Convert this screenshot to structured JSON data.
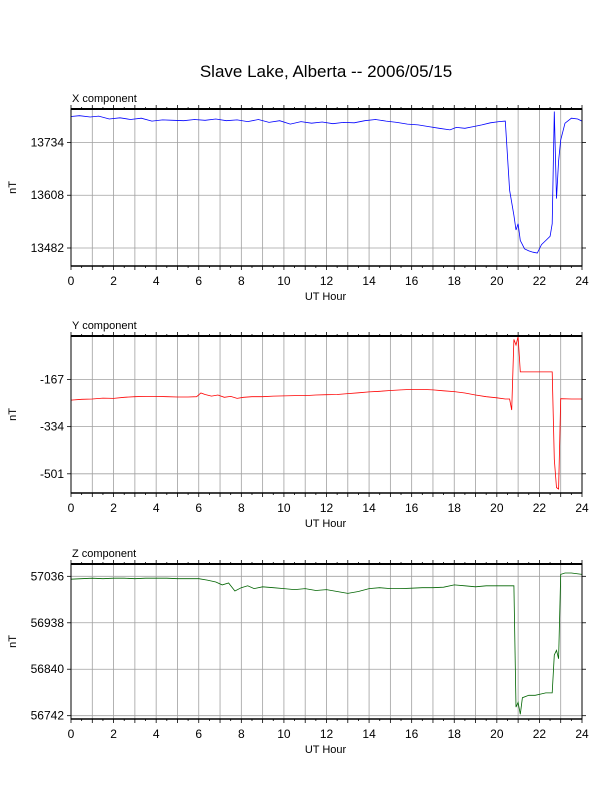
{
  "title": "Slave Lake, Alberta -- 2006/05/15",
  "chart_data": [
    {
      "type": "line",
      "title": "X component",
      "xlabel": "UT Hour",
      "ylabel": "nT",
      "xlim": [
        0,
        24
      ],
      "ylim": [
        13439,
        13814
      ],
      "xticks": [
        0,
        2,
        4,
        6,
        8,
        10,
        12,
        14,
        16,
        18,
        20,
        22,
        24
      ],
      "yticks": [
        13482,
        13608,
        13734
      ],
      "grid": true,
      "color": "#0000ff",
      "series": [
        {
          "x": [
            0,
            0.4,
            0.9,
            1.3,
            1.8,
            2.3,
            2.8,
            3.3,
            3.8,
            4.3,
            4.8,
            5.3,
            5.8,
            6.3,
            6.8,
            7.3,
            7.8,
            8.3,
            8.8,
            9.3,
            9.8,
            10.3,
            10.8,
            11.3,
            11.8,
            12.3,
            12.8,
            13.3,
            13.8,
            14.3,
            14.8,
            15.3,
            15.8,
            16.3,
            16.8,
            17.3,
            17.8,
            18.1,
            18.5,
            18.9,
            19.3,
            19.7,
            20.1,
            20.4,
            20.6,
            20.8,
            20.9,
            21.0,
            21.1,
            21.2,
            21.3,
            21.5,
            21.7,
            21.9,
            22.1,
            22.3,
            22.5,
            22.6,
            22.7,
            22.8,
            22.9,
            23.0,
            23.2,
            23.5,
            23.8,
            24
          ],
          "y": [
            13796,
            13798,
            13795,
            13797,
            13790,
            13793,
            13789,
            13792,
            13785,
            13788,
            13787,
            13786,
            13789,
            13787,
            13790,
            13786,
            13788,
            13784,
            13789,
            13782,
            13786,
            13778,
            13784,
            13780,
            13783,
            13779,
            13782,
            13781,
            13786,
            13789,
            13785,
            13782,
            13778,
            13776,
            13772,
            13768,
            13764,
            13770,
            13768,
            13772,
            13776,
            13781,
            13784,
            13785,
            13620,
            13560,
            13525,
            13540,
            13500,
            13490,
            13480,
            13475,
            13472,
            13470,
            13490,
            13500,
            13510,
            13540,
            13808,
            13600,
            13690,
            13740,
            13780,
            13792,
            13790,
            13785
          ]
        }
      ]
    },
    {
      "type": "line",
      "title": "Y component",
      "xlabel": "UT Hour",
      "ylabel": "nT",
      "xlim": [
        0,
        24
      ],
      "ylim": [
        -569,
        -13
      ],
      "xticks": [
        0,
        2,
        4,
        6,
        8,
        10,
        12,
        14,
        16,
        18,
        20,
        22,
        24
      ],
      "yticks": [
        -167,
        -334,
        -501
      ],
      "grid": true,
      "color": "#ff0000",
      "series": [
        {
          "x": [
            0,
            0.5,
            1,
            1.5,
            2,
            2.5,
            3,
            3.5,
            4,
            4.5,
            5,
            5.5,
            5.9,
            6.1,
            6.3,
            6.6,
            6.9,
            7.2,
            7.5,
            7.8,
            8.1,
            8.5,
            9,
            9.5,
            10,
            10.5,
            11,
            11.5,
            12,
            12.5,
            13,
            13.5,
            14,
            14.5,
            15,
            15.5,
            16,
            16.5,
            17,
            17.5,
            18,
            18.5,
            19,
            19.5,
            20,
            20.4,
            20.6,
            20.7,
            20.8,
            20.9,
            21.0,
            21.1,
            21.2,
            21.5,
            21.8,
            22.0,
            22.2,
            22.4,
            22.6,
            22.7,
            22.8,
            22.9,
            23.0,
            23.5,
            24
          ],
          "y": [
            -240,
            -237,
            -236,
            -233,
            -234,
            -230,
            -228,
            -227,
            -227,
            -228,
            -229,
            -229,
            -228,
            -215,
            -220,
            -226,
            -222,
            -230,
            -227,
            -234,
            -230,
            -228,
            -228,
            -226,
            -225,
            -224,
            -224,
            -222,
            -221,
            -220,
            -217,
            -214,
            -211,
            -209,
            -206,
            -204,
            -202,
            -202,
            -204,
            -207,
            -210,
            -215,
            -222,
            -228,
            -232,
            -236,
            -236,
            -275,
            -25,
            -45,
            -15,
            -140,
            -140,
            -140,
            -140,
            -140,
            -140,
            -140,
            -140,
            -450,
            -550,
            -555,
            -235,
            -236,
            -236
          ]
        }
      ]
    },
    {
      "type": "line",
      "title": "Z component",
      "xlabel": "UT Hour",
      "ylabel": "nT",
      "xlim": [
        0,
        24
      ],
      "ylim": [
        56735,
        57062
      ],
      "xticks": [
        0,
        2,
        4,
        6,
        8,
        10,
        12,
        14,
        16,
        18,
        20,
        22,
        24
      ],
      "yticks": [
        56742,
        56840,
        56938,
        57036
      ],
      "grid": true,
      "color": "#006400",
      "series": [
        {
          "x": [
            0,
            0.5,
            1,
            1.5,
            2,
            2.5,
            3,
            3.5,
            4,
            4.5,
            5,
            5.5,
            6,
            6.4,
            6.8,
            7.1,
            7.4,
            7.7,
            8.0,
            8.3,
            8.6,
            9,
            9.5,
            10,
            10.5,
            11,
            11.5,
            12,
            12.5,
            13,
            13.5,
            14,
            14.5,
            15,
            15.5,
            16,
            16.5,
            17,
            17.5,
            18,
            18.5,
            19,
            19.5,
            20,
            20.4,
            20.8,
            20.9,
            21.0,
            21.1,
            21.2,
            21.5,
            21.8,
            22.1,
            22.3,
            22.5,
            22.6,
            22.7,
            22.8,
            22.9,
            23.0,
            23.2,
            23.5,
            24
          ],
          "y": [
            57030,
            57031,
            57032,
            57031,
            57032,
            57032,
            57031,
            57032,
            57032,
            57032,
            57031,
            57031,
            57031,
            57028,
            57024,
            57018,
            57022,
            57005,
            57012,
            57016,
            57010,
            57014,
            57012,
            57010,
            57008,
            57010,
            57006,
            57008,
            57004,
            57000,
            57004,
            57010,
            57012,
            57010,
            57010,
            57011,
            57012,
            57012,
            57013,
            57018,
            57016,
            57014,
            57016,
            57016,
            57016,
            57016,
            56760,
            56770,
            56745,
            56780,
            56785,
            56785,
            56788,
            56790,
            56790,
            56790,
            56870,
            56880,
            56862,
            57040,
            57043,
            57043,
            57040
          ]
        }
      ]
    }
  ]
}
